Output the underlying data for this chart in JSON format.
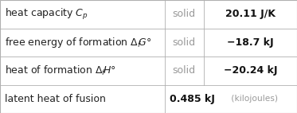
{
  "rows": [
    {
      "label": "heat capacity $C_p$",
      "phase": "solid",
      "value": "20.11 J/K",
      "span_phase": true
    },
    {
      "label": "free energy of formation $\\Delta_f G\\degree$",
      "phase": "solid",
      "value": "−18.7 kJ",
      "span_phase": true
    },
    {
      "label": "heat of formation $\\Delta_f H\\degree$",
      "phase": "solid",
      "value": "−20.24 kJ",
      "span_phase": true
    },
    {
      "label": "latent heat of fusion",
      "phase": null,
      "value": "0.485 kJ",
      "value_suffix": " (kilojoules)",
      "span_phase": false
    }
  ],
  "col_splits": [
    0.555,
    0.685
  ],
  "background_color": "#ffffff",
  "border_color": "#b0b0b0",
  "phase_color": "#999999",
  "text_color": "#222222",
  "value_color": "#111111",
  "font_size": 9.0,
  "fig_width": 3.73,
  "fig_height": 1.42,
  "dpi": 100
}
